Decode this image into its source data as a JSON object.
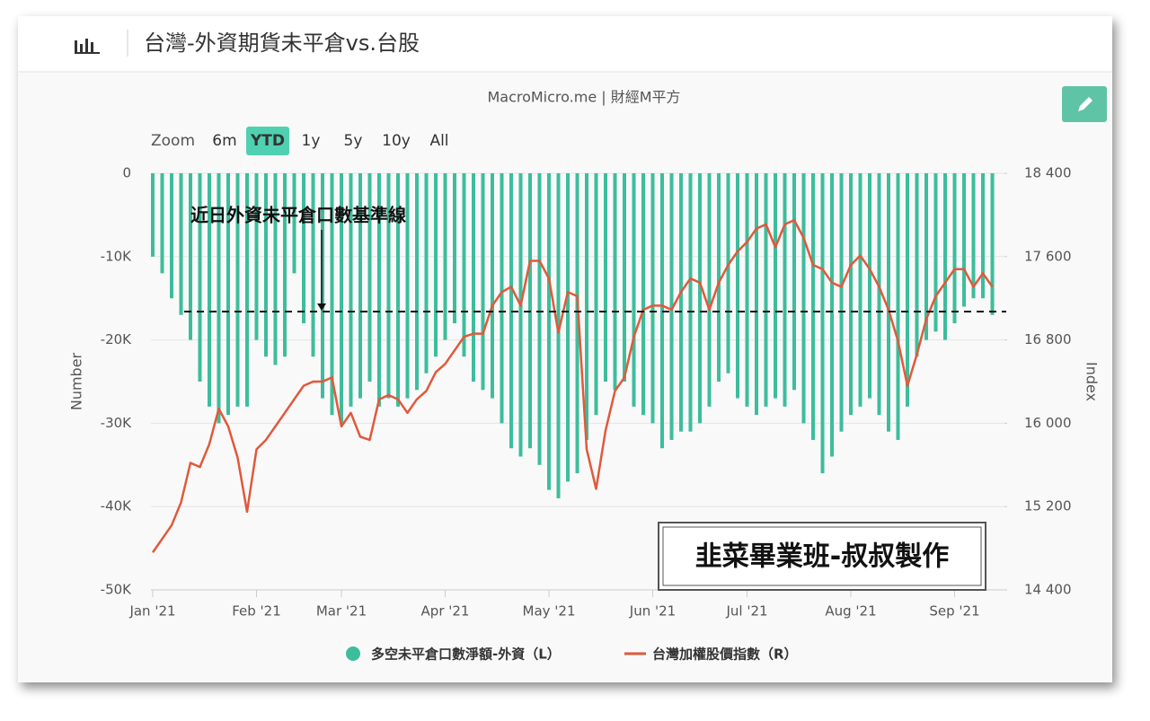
{
  "header": {
    "title": "台灣-外資期貨未平倉vs.台股"
  },
  "zoom": {
    "label": "Zoom",
    "options": [
      "6m",
      "YTD",
      "1y",
      "5y",
      "10y",
      "All"
    ],
    "active": "YTD"
  },
  "watermark": "韭菜畢業班-叔叔製作",
  "chart_data": {
    "type": "bar-line",
    "subtitle": "MacroMicro.me | 財經M平方",
    "ylabel": "Number",
    "y2label": "Index",
    "annotation": {
      "text": "近日外資未平倉口數基準線",
      "value": -16600
    },
    "categories": [
      "Jan '21",
      null,
      null,
      null,
      null,
      null,
      null,
      null,
      null,
      null,
      null,
      "Feb '21",
      null,
      null,
      null,
      null,
      null,
      null,
      null,
      null,
      "Mar '21",
      null,
      null,
      null,
      null,
      null,
      null,
      null,
      null,
      null,
      null,
      "Apr '21",
      null,
      null,
      null,
      null,
      null,
      null,
      null,
      null,
      null,
      null,
      "May '21",
      null,
      null,
      null,
      null,
      null,
      null,
      null,
      null,
      null,
      null,
      "Jun '21",
      null,
      null,
      null,
      null,
      null,
      null,
      null,
      null,
      null,
      "Jul '21",
      null,
      null,
      null,
      null,
      null,
      null,
      null,
      null,
      null,
      null,
      "Aug '21",
      null,
      null,
      null,
      null,
      null,
      null,
      null,
      null,
      null,
      null,
      "Sep '21",
      null,
      null,
      null,
      null
    ],
    "ylim": [
      -50000,
      0
    ],
    "yticks": [
      {
        "value": 0,
        "label": "0"
      },
      {
        "value": -10000,
        "label": "-10K"
      },
      {
        "value": -20000,
        "label": "-20K"
      },
      {
        "value": -30000,
        "label": "-30K"
      },
      {
        "value": -40000,
        "label": "-40K"
      },
      {
        "value": -50000,
        "label": "-50K"
      }
    ],
    "y2lim": [
      14400,
      18400
    ],
    "y2ticks": [
      {
        "value": 18400,
        "label": "18 400"
      },
      {
        "value": 17600,
        "label": "17 600"
      },
      {
        "value": 16800,
        "label": "16 800"
      },
      {
        "value": 16000,
        "label": "16 000"
      },
      {
        "value": 15200,
        "label": "15 200"
      },
      {
        "value": 14400,
        "label": "14 400"
      }
    ],
    "grid": true,
    "series": [
      {
        "name": "多空未平倉口數淨額-外資（L）",
        "type": "bar",
        "color": "#3dbd9c",
        "values": [
          -10000,
          -12000,
          -15000,
          -17000,
          -20000,
          -25000,
          -28000,
          -30000,
          -29000,
          -28000,
          -28000,
          -20000,
          -22000,
          -23000,
          -22000,
          -12000,
          -18000,
          -22000,
          -27000,
          -29000,
          -30000,
          -28000,
          -27000,
          -25000,
          -28000,
          -27000,
          -28000,
          -27000,
          -26000,
          -24000,
          -22000,
          -20000,
          -18000,
          -22000,
          -25000,
          -26000,
          -27000,
          -30000,
          -33000,
          -34000,
          -33000,
          -35000,
          -38000,
          -39000,
          -37000,
          -36000,
          -32000,
          -29000,
          -25000,
          -26000,
          -25000,
          -28000,
          -29000,
          -30000,
          -33000,
          -32000,
          -31000,
          -31000,
          -30000,
          -28000,
          -25000,
          -24000,
          -27000,
          -28000,
          -29000,
          -28000,
          -27000,
          -28000,
          -26000,
          -30000,
          -32000,
          -36000,
          -34000,
          -31000,
          -29000,
          -28000,
          -27000,
          -29000,
          -31000,
          -32000,
          -28000,
          -22000,
          -20000,
          -19000,
          -20000,
          -18000,
          -16000,
          -15000,
          -15000,
          -17000
        ]
      },
      {
        "name": "台灣加權股價指數（R）",
        "type": "line",
        "axis": "y2",
        "color": "#e0593b",
        "values": [
          14760,
          14890,
          15020,
          15240,
          15620,
          15580,
          15800,
          16140,
          15970,
          15670,
          15150,
          15750,
          15840,
          15970,
          16100,
          16230,
          16360,
          16400,
          16400,
          16440,
          15970,
          16100,
          15870,
          15840,
          16230,
          16270,
          16230,
          16100,
          16230,
          16310,
          16490,
          16570,
          16700,
          16830,
          16860,
          16860,
          17130,
          17260,
          17310,
          17130,
          17560,
          17560,
          17390,
          16870,
          17260,
          17220,
          15750,
          15370,
          15930,
          16310,
          16440,
          16830,
          17090,
          17130,
          17130,
          17090,
          17260,
          17390,
          17350,
          17090,
          17350,
          17520,
          17650,
          17740,
          17870,
          17910,
          17690,
          17910,
          17950,
          17780,
          17520,
          17480,
          17350,
          17310,
          17520,
          17610,
          17480,
          17310,
          17090,
          16790,
          16360,
          16660,
          17000,
          17220,
          17350,
          17480,
          17480,
          17310,
          17440,
          17310
        ]
      }
    ]
  }
}
